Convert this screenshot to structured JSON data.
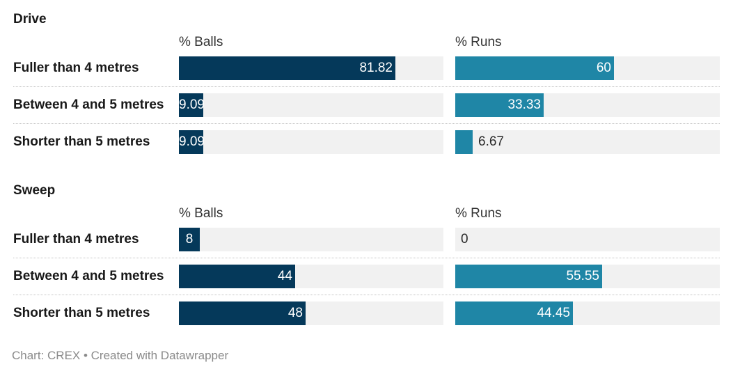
{
  "chart_data": {
    "type": "bar",
    "columns": [
      "% Balls",
      "% Runs"
    ],
    "xlim": [
      0,
      100
    ],
    "colors": {
      "balls": "#05395a",
      "runs": "#1f86a6",
      "track": "#f1f1f1"
    },
    "groups": [
      {
        "title": "Drive",
        "rows": [
          {
            "label": "Fuller than 4 metres",
            "balls": 81.82,
            "runs": 60,
            "balls_text": "81.82",
            "runs_text": "60"
          },
          {
            "label": "Between 4 and 5 metres",
            "balls": 9.09,
            "runs": 33.33,
            "balls_text": "9.09",
            "runs_text": "33.33"
          },
          {
            "label": "Shorter than 5 metres",
            "balls": 9.09,
            "runs": 6.67,
            "balls_text": "9.09",
            "runs_text": "6.67"
          }
        ]
      },
      {
        "title": "Sweep",
        "rows": [
          {
            "label": "Fuller than 4 metres",
            "balls": 8,
            "runs": 0,
            "balls_text": "8",
            "runs_text": "0"
          },
          {
            "label": "Between 4 and 5 metres",
            "balls": 44,
            "runs": 55.55,
            "balls_text": "44",
            "runs_text": "55.55"
          },
          {
            "label": "Shorter than 5 metres",
            "balls": 48,
            "runs": 44.45,
            "balls_text": "48",
            "runs_text": "44.45"
          }
        ]
      }
    ]
  },
  "footer": "Chart: CREX • Created with Datawrapper"
}
